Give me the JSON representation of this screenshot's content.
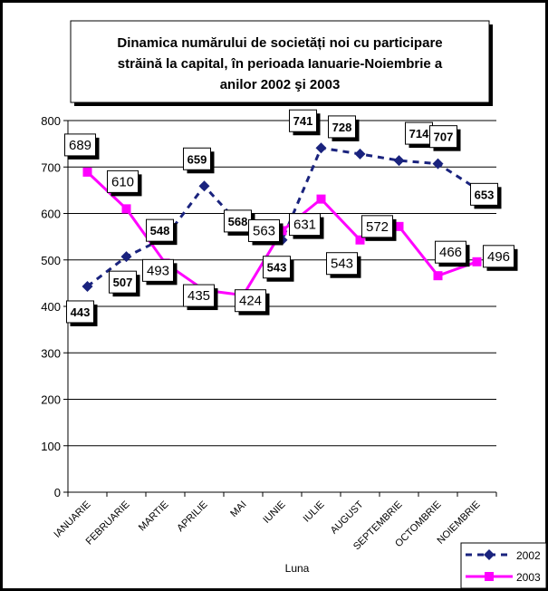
{
  "chart_data": {
    "type": "line",
    "title_lines": [
      "Dinamica numărului de societăți noi cu participare",
      "străină la capital,  în perioada Ianuarie-Noiembrie a",
      "anilor 2002 şi 2003"
    ],
    "xlabel": "Luna",
    "ylabel": "",
    "ylim": [
      0,
      800
    ],
    "yticks": [
      0,
      100,
      200,
      300,
      400,
      500,
      600,
      700,
      800
    ],
    "grid": true,
    "legend_position": "bottom-right",
    "categories": [
      "IANUARIE",
      "FEBRUARIE",
      "MARTIE",
      "APRILIE",
      "MAI",
      "IUNIE",
      "IULIE",
      "AUGUST",
      "SEPTEMBRIE",
      "OCTOMBRIE",
      "NOIEMBRIE"
    ],
    "series": [
      {
        "name": "2002",
        "color": "#1a237e",
        "marker": "diamond",
        "line": "dashed",
        "values": [
          443,
          507,
          548,
          659,
          568,
          543,
          741,
          728,
          714,
          707,
          653
        ]
      },
      {
        "name": "2003",
        "color": "#ff00ff",
        "marker": "square",
        "line": "solid",
        "values": [
          689,
          610,
          493,
          435,
          424,
          563,
          631,
          543,
          572,
          466,
          496
        ]
      }
    ]
  }
}
